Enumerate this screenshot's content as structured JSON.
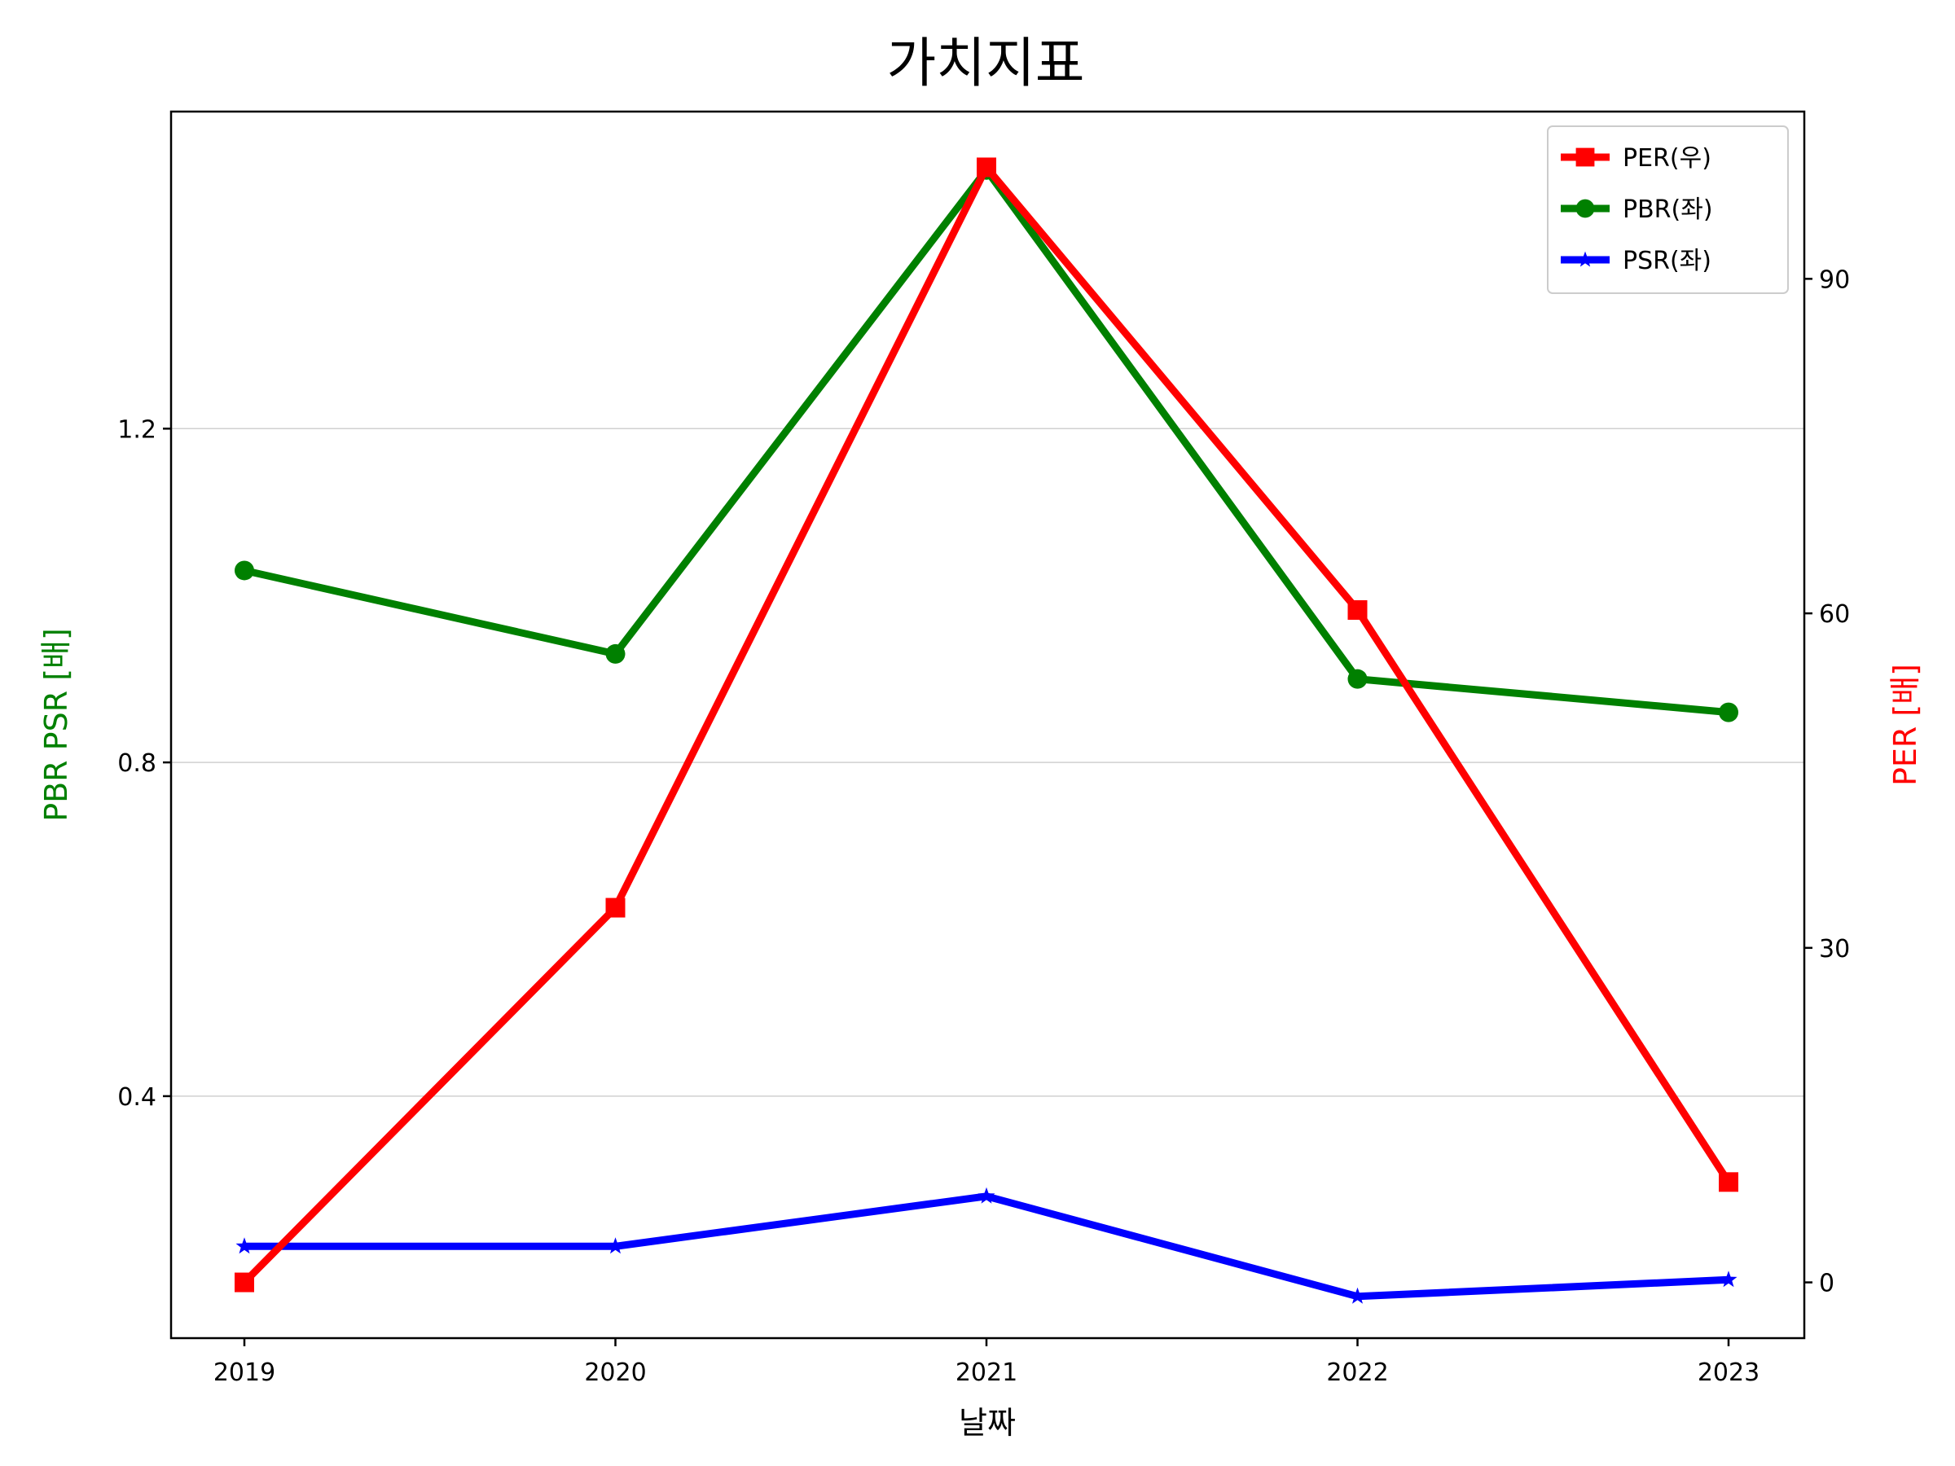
{
  "chart_data": {
    "type": "line",
    "title": "가치지표",
    "xlabel": "날짜",
    "ylabel_left": "PBR PSR [배]",
    "ylabel_right": "PER [배]",
    "categories": [
      "2019",
      "2020",
      "2021",
      "2022",
      "2023"
    ],
    "ylim_left": [
      0.11,
      1.58
    ],
    "yticks_left": [
      "0.4",
      "0.8",
      "1.2"
    ],
    "ylim_right": [
      -5,
      105
    ],
    "yticks_right": [
      "0",
      "30",
      "60",
      "90"
    ],
    "grid": "horizontal-left",
    "legend_position": "top-right",
    "series": [
      {
        "name": "PER(우)",
        "axis": "right",
        "color": "#ff0000",
        "marker": "square",
        "values": [
          0,
          33.6,
          100,
          60.3,
          9
        ]
      },
      {
        "name": "PBR(좌)",
        "axis": "left",
        "color": "#008000",
        "marker": "circle",
        "values": [
          1.03,
          0.93,
          1.51,
          0.9,
          0.86
        ]
      },
      {
        "name": "PSR(좌)",
        "axis": "left",
        "color": "#0000ff",
        "marker": "star",
        "values": [
          0.22,
          0.22,
          0.28,
          0.16,
          0.18
        ]
      }
    ]
  }
}
